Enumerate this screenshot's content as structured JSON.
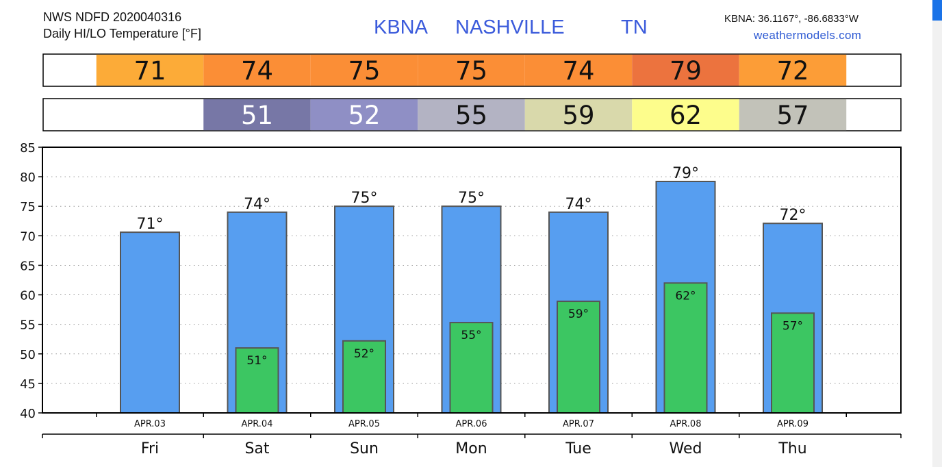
{
  "header": {
    "source_line": "NWS NDFD 2020040316",
    "product_line": "Daily HI/LO Temperature [°F]",
    "station_code": "KBNA",
    "city": "NASHVILLE",
    "state": "TN",
    "coords": "KBNA: 36.1167°, -86.6833°W",
    "site": "weathermodels.com"
  },
  "colors": {
    "title_blue": "#3b5bdb",
    "site_blue": "#2f5bd3",
    "hi_bar": "#579ef0",
    "lo_bar": "#3cc662",
    "bar_stroke": "#555555",
    "hi_strip": [
      "#fcab38",
      "#fb8e36",
      "#fb8e36",
      "#fb8e36",
      "#fb8e36",
      "#ec733e",
      "#fc9d37"
    ],
    "lo_strip": [
      "",
      "#7777a6",
      "#8f8fc5",
      "#b3b3c3",
      "#d9d9ab",
      "#fdfd8c",
      "#c2c2b9"
    ]
  },
  "chart_data": {
    "type": "bar",
    "categories": [
      "Fri",
      "Sat",
      "Sun",
      "Mon",
      "Tue",
      "Wed",
      "Thu"
    ],
    "dates": [
      "APR.03",
      "APR.04",
      "APR.05",
      "APR.06",
      "APR.07",
      "APR.08",
      "APR.09"
    ],
    "series": [
      {
        "values": [
          71,
          74,
          75,
          75,
          74,
          79,
          72
        ]
      },
      {
        "values": [
          null,
          51,
          52,
          55,
          59,
          62,
          57
        ]
      }
    ],
    "hi_bar_values": [
      70.6,
      74,
      75,
      75,
      74,
      79.2,
      72.1
    ],
    "lo_bar_values": [
      null,
      51,
      52.2,
      55.3,
      58.9,
      62,
      56.9
    ],
    "data_labels_hi": [
      "71°",
      "74°",
      "75°",
      "75°",
      "74°",
      "79°",
      "72°"
    ],
    "data_labels_lo": [
      "",
      "51°",
      "52°",
      "55°",
      "59°",
      "62°",
      "57°"
    ],
    "strip_hi": [
      "71",
      "74",
      "75",
      "75",
      "74",
      "79",
      "72"
    ],
    "strip_lo": [
      "",
      "51",
      "52",
      "55",
      "59",
      "62",
      "57"
    ],
    "ylim": [
      40,
      85
    ],
    "yticks": [
      40,
      45,
      50,
      55,
      60,
      65,
      70,
      75,
      80,
      85
    ],
    "ytick_labels": [
      "40",
      "45",
      "50",
      "55",
      "60",
      "65",
      "70",
      "75",
      "80",
      "85"
    ],
    "grid": true,
    "title": "",
    "xlabel": "",
    "ylabel": ""
  }
}
